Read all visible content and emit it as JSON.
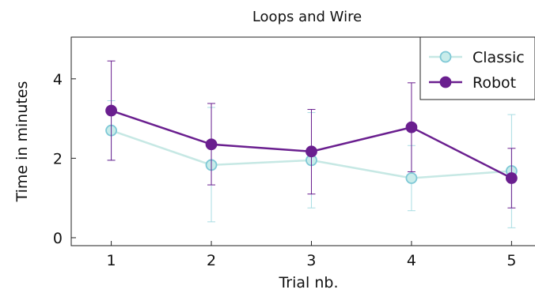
{
  "chart_data": {
    "type": "line",
    "title": "Loops and Wire",
    "xlabel": "Trial nb.",
    "ylabel": "Time in minutes",
    "x": [
      1,
      2,
      3,
      4,
      5
    ],
    "xlim": [
      0.6,
      5.25
    ],
    "ylim": [
      -0.2,
      5.05
    ],
    "xticks": [
      1,
      2,
      3,
      4,
      5
    ],
    "yticks": [
      0,
      2,
      4
    ],
    "grid": false,
    "legend_position": "top-right",
    "error_bars": true,
    "series": [
      {
        "name": "Classic",
        "values": [
          2.7,
          1.83,
          1.95,
          1.5,
          1.68
        ],
        "error_low": [
          1.95,
          0.4,
          0.75,
          0.68,
          0.25
        ],
        "error_high": [
          3.45,
          3.28,
          3.15,
          2.32,
          3.1
        ],
        "line_color": "#c6e8e4",
        "error_color": "#a9dde3",
        "marker_fill": "#c8ecea",
        "marker_edge": "#7ec8d6"
      },
      {
        "name": "Robot",
        "values": [
          3.2,
          2.35,
          2.17,
          2.78,
          1.5
        ],
        "error_low": [
          1.95,
          1.33,
          1.1,
          1.66,
          0.75
        ],
        "error_high": [
          4.45,
          3.38,
          3.23,
          3.9,
          2.25
        ],
        "line_color": "#6a1f8f",
        "error_color": "#6a1f8f",
        "marker_fill": "#6a1f8f",
        "marker_edge": "#6a1f8f"
      }
    ]
  }
}
